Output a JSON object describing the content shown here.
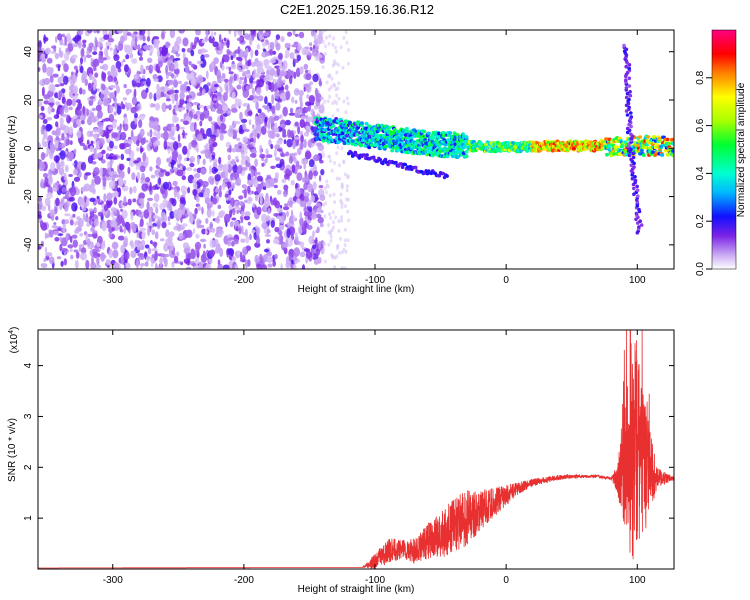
{
  "title": "C2E1.2025.159.16.36.R12",
  "colors": {
    "line": "#e83030",
    "axis": "#000000",
    "low_amp": "#d9c4f5",
    "mid_amp": "#7a22e6"
  },
  "chart_data": [
    {
      "type": "heatmap",
      "xlabel": "Height of straight line (km)",
      "ylabel": "Frequency (Hz)",
      "xlim": [
        -357,
        128
      ],
      "ylim": [
        -50,
        49
      ],
      "xticks": [
        -300,
        -200,
        -100,
        0,
        100
      ],
      "yticks": [
        -40,
        -20,
        0,
        20,
        40
      ],
      "xtick_labels": [
        "-300",
        "-200",
        "-100",
        "0",
        "100"
      ],
      "ytick_labels": [
        "-40",
        "-20",
        "0",
        "20",
        "40"
      ],
      "colorbar": {
        "label": "Normalized spectral amplitude",
        "range": [
          0,
          1
        ],
        "ticks": [
          0.0,
          0.2,
          0.4,
          0.6,
          0.8
        ],
        "tick_labels": [
          "0.0",
          "0.2",
          "0.4",
          "0.6",
          "0.8"
        ]
      },
      "features": [
        {
          "name": "noise field",
          "x_range": [
            -357,
            -140
          ],
          "y_range": [
            -50,
            49
          ],
          "amplitude": 0.1
        },
        {
          "name": "band",
          "x": [
            -140,
            -100,
            -60,
            -30,
            0,
            40,
            80,
            128
          ],
          "y": [
            8,
            5,
            2,
            1,
            0.5,
            1,
            1,
            1
          ],
          "amplitude_peak": 1.0
        },
        {
          "name": "spike",
          "x": 95,
          "y_range": [
            -35,
            43
          ],
          "amplitude": 0.2
        }
      ]
    },
    {
      "type": "line",
      "xlabel": "Height of straight line (km)",
      "ylabel": "SNR (10 * v/v)",
      "scale_label": "(x10",
      "scale_exp": "4",
      "scale_close": ")",
      "xlim": [
        -357,
        128
      ],
      "ylim": [
        0,
        4.7
      ],
      "xticks": [
        -300,
        -200,
        -100,
        0,
        100
      ],
      "yticks": [
        1,
        2,
        3,
        4
      ],
      "xtick_labels": [
        "-300",
        "-200",
        "-100",
        "0",
        "100"
      ],
      "ytick_labels": [
        "1",
        "2",
        "3",
        "4"
      ],
      "envelope": {
        "x": [
          -357,
          -110,
          -100,
          -90,
          -80,
          -70,
          -60,
          -50,
          -40,
          -30,
          -20,
          -10,
          0,
          10,
          20,
          30,
          40,
          50,
          60,
          70,
          80,
          85,
          90,
          95,
          100,
          105,
          110,
          115,
          128
        ],
        "y": [
          0.02,
          0.03,
          0.15,
          0.35,
          0.4,
          0.35,
          0.55,
          0.65,
          0.85,
          1.0,
          1.15,
          1.3,
          1.45,
          1.6,
          1.7,
          1.75,
          1.8,
          1.82,
          1.82,
          1.82,
          1.78,
          1.78,
          1.9,
          2.3,
          2.4,
          2.0,
          1.9,
          1.8,
          1.78
        ],
        "noise": [
          0.0,
          0.0,
          0.15,
          0.25,
          0.2,
          0.25,
          0.35,
          0.45,
          0.55,
          0.55,
          0.4,
          0.3,
          0.2,
          0.12,
          0.08,
          0.06,
          0.05,
          0.04,
          0.03,
          0.03,
          0.03,
          0.3,
          1.2,
          2.2,
          2.2,
          1.4,
          0.8,
          0.2,
          0.03
        ]
      }
    }
  ]
}
